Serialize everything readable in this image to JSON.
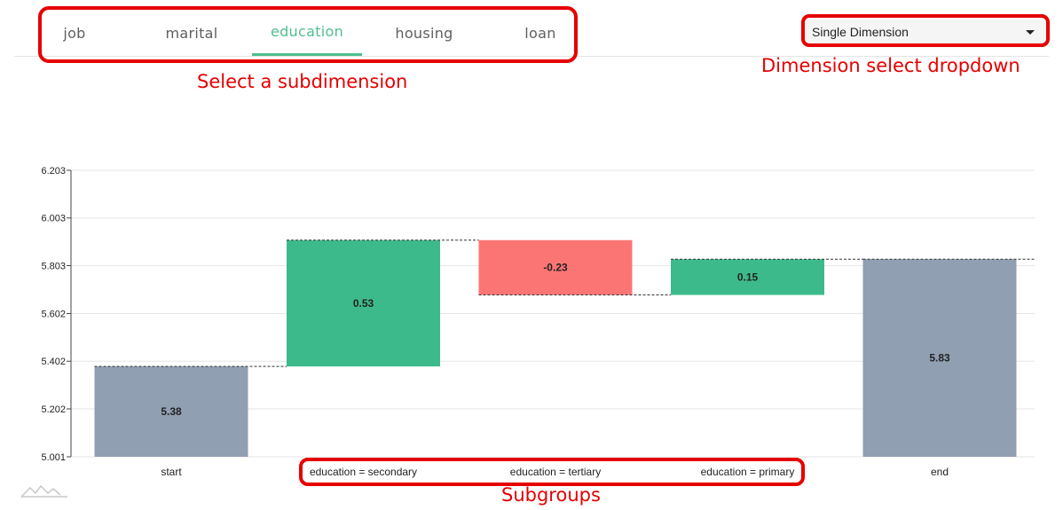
{
  "tabs": {
    "items": [
      {
        "label": "job"
      },
      {
        "label": "marital"
      },
      {
        "label": "education",
        "active": true
      },
      {
        "label": "housing"
      },
      {
        "label": "loan"
      }
    ]
  },
  "dropdown": {
    "value": "Single Dimension"
  },
  "annotations": {
    "subdimension": "Select a subdimension",
    "dimension_dropdown": "Dimension select dropdown",
    "subgroups": "Subgroups"
  },
  "colors": {
    "accent": "#4fbf8f",
    "positive": "#3dba8c",
    "negative": "#fc7575",
    "total": "#909fb2",
    "callout": "#e60000"
  },
  "chart_data": {
    "type": "bar",
    "subtype": "waterfall",
    "categories": [
      "start",
      "education = secondary",
      "education = tertiary",
      "education = primary",
      "end"
    ],
    "bars": [
      {
        "kind": "total",
        "base": 5.001,
        "top": 5.38,
        "label": "5.38"
      },
      {
        "kind": "delta",
        "base": 5.38,
        "top": 5.91,
        "label": "0.53"
      },
      {
        "kind": "delta",
        "base": 5.91,
        "top": 5.68,
        "label": "-0.23"
      },
      {
        "kind": "delta",
        "base": 5.68,
        "top": 5.83,
        "label": "0.15"
      },
      {
        "kind": "total",
        "base": 5.001,
        "top": 5.83,
        "label": "5.83"
      }
    ],
    "yticks": [
      "5.001",
      "5.202",
      "5.402",
      "5.602",
      "5.803",
      "6.003",
      "6.203"
    ],
    "ylim": [
      5.001,
      6.203
    ],
    "grid": true
  }
}
